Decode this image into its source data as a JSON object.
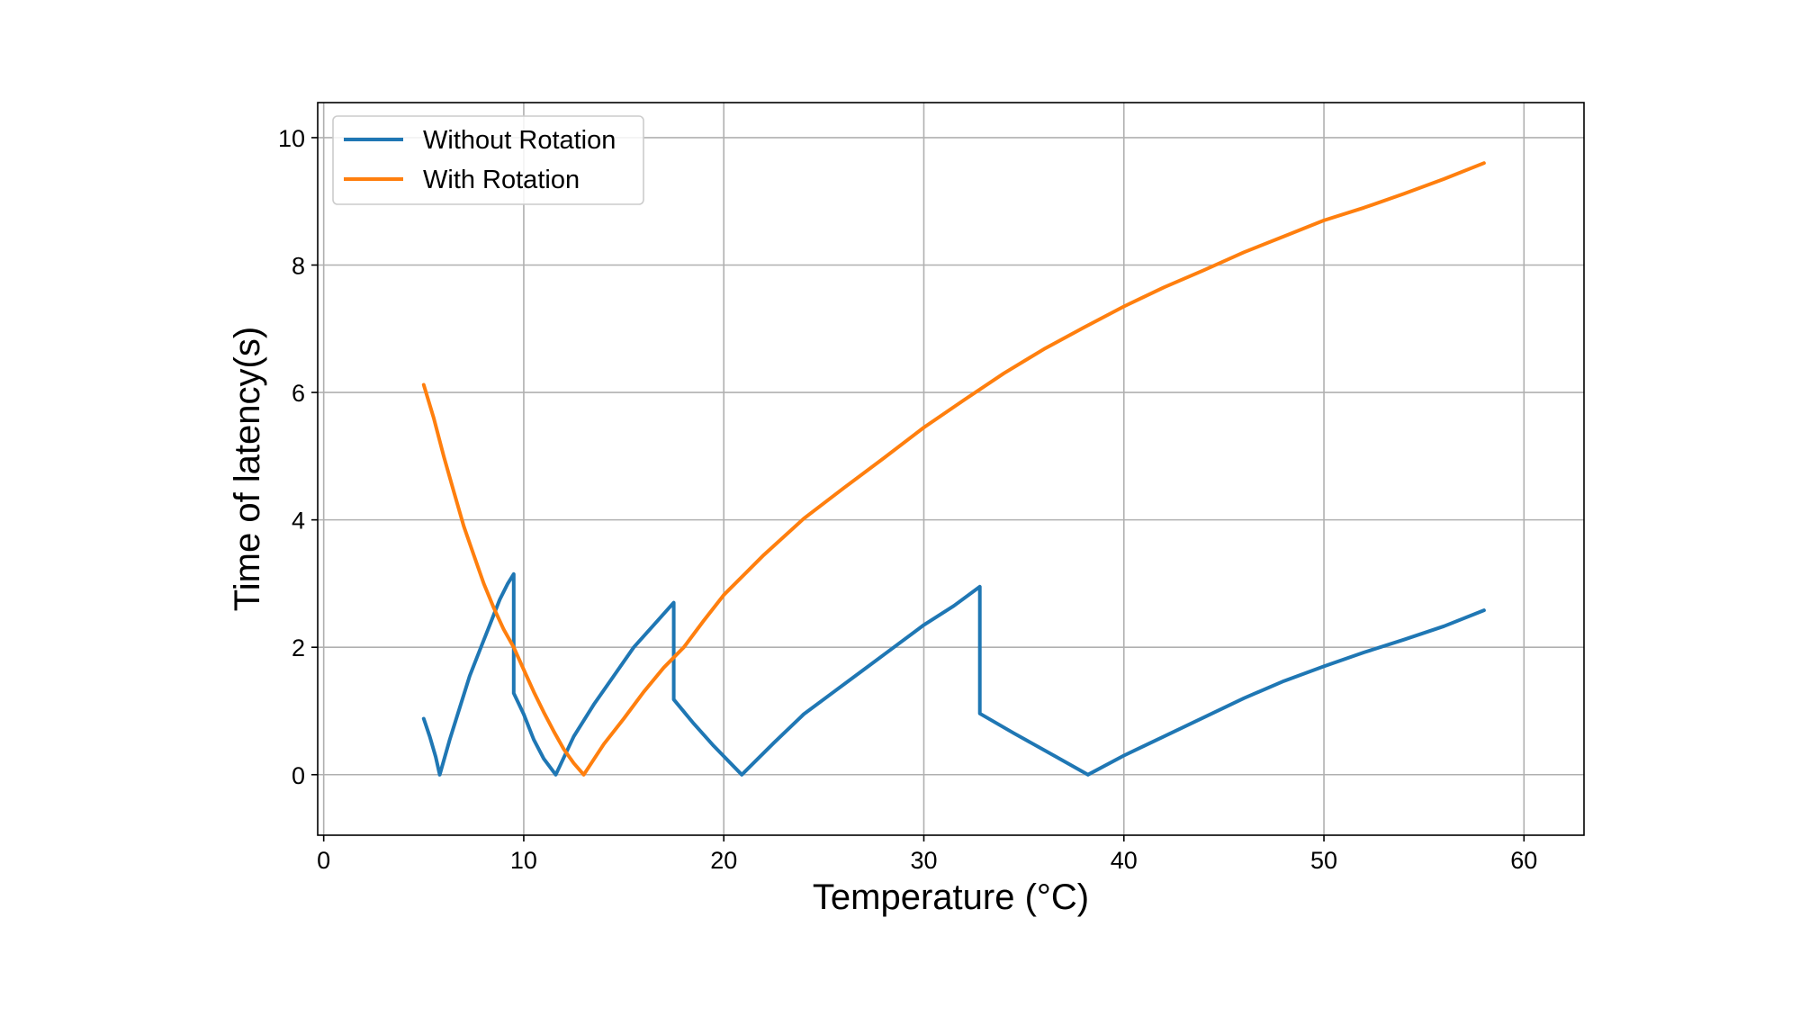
{
  "chart_data": {
    "type": "line",
    "title": "",
    "xlabel": "Temperature (°C)",
    "ylabel": "Time of latency(s)",
    "xlim": [
      -0.3,
      63
    ],
    "ylim": [
      -0.95,
      10.55
    ],
    "x_ticks": [
      0,
      10,
      20,
      30,
      40,
      50,
      60
    ],
    "y_ticks": [
      0,
      2,
      4,
      6,
      8,
      10
    ],
    "grid": true,
    "legend_placement": "top-left",
    "series": [
      {
        "name": "Without Rotation",
        "color": "#1f77b4",
        "points": [
          [
            5.0,
            0.88
          ],
          [
            5.3,
            0.6
          ],
          [
            5.6,
            0.28
          ],
          [
            5.8,
            0.0
          ],
          [
            6.3,
            0.55
          ],
          [
            6.8,
            1.05
          ],
          [
            7.3,
            1.55
          ],
          [
            7.8,
            1.95
          ],
          [
            8.3,
            2.35
          ],
          [
            8.8,
            2.75
          ],
          [
            9.2,
            3.0
          ],
          [
            9.5,
            3.15
          ],
          [
            9.5,
            1.28
          ],
          [
            10.0,
            0.95
          ],
          [
            10.5,
            0.55
          ],
          [
            11.0,
            0.25
          ],
          [
            11.6,
            0.0
          ],
          [
            12.5,
            0.6
          ],
          [
            13.5,
            1.1
          ],
          [
            14.5,
            1.55
          ],
          [
            15.5,
            2.0
          ],
          [
            16.5,
            2.35
          ],
          [
            17.5,
            2.7
          ],
          [
            17.5,
            1.18
          ],
          [
            18.5,
            0.8
          ],
          [
            19.5,
            0.45
          ],
          [
            20.9,
            0.0
          ],
          [
            22.5,
            0.5
          ],
          [
            24.0,
            0.95
          ],
          [
            25.5,
            1.3
          ],
          [
            27.0,
            1.65
          ],
          [
            28.5,
            2.0
          ],
          [
            30.0,
            2.35
          ],
          [
            31.5,
            2.65
          ],
          [
            32.8,
            2.95
          ],
          [
            32.8,
            0.96
          ],
          [
            34.5,
            0.65
          ],
          [
            36.5,
            0.3
          ],
          [
            38.2,
            0.0
          ],
          [
            40.0,
            0.3
          ],
          [
            42.0,
            0.6
          ],
          [
            44.0,
            0.9
          ],
          [
            46.0,
            1.2
          ],
          [
            48.0,
            1.47
          ],
          [
            50.0,
            1.7
          ],
          [
            52.0,
            1.92
          ],
          [
            54.0,
            2.12
          ],
          [
            56.0,
            2.33
          ],
          [
            58.0,
            2.58
          ]
        ]
      },
      {
        "name": "With Rotation",
        "color": "#ff7f0e",
        "points": [
          [
            5.0,
            6.12
          ],
          [
            5.5,
            5.6
          ],
          [
            6.0,
            5.0
          ],
          [
            6.5,
            4.45
          ],
          [
            7.0,
            3.9
          ],
          [
            7.5,
            3.45
          ],
          [
            8.0,
            3.0
          ],
          [
            8.5,
            2.62
          ],
          [
            9.0,
            2.28
          ],
          [
            9.5,
            2.0
          ],
          [
            10.0,
            1.65
          ],
          [
            10.5,
            1.3
          ],
          [
            11.0,
            0.98
          ],
          [
            11.5,
            0.68
          ],
          [
            12.0,
            0.4
          ],
          [
            12.5,
            0.18
          ],
          [
            13.0,
            0.0
          ],
          [
            14.0,
            0.48
          ],
          [
            15.0,
            0.88
          ],
          [
            16.0,
            1.3
          ],
          [
            17.0,
            1.68
          ],
          [
            18.0,
            2.0
          ],
          [
            19.0,
            2.42
          ],
          [
            20.0,
            2.82
          ],
          [
            22.0,
            3.45
          ],
          [
            24.0,
            4.02
          ],
          [
            26.0,
            4.5
          ],
          [
            28.0,
            4.97
          ],
          [
            30.0,
            5.45
          ],
          [
            32.0,
            5.88
          ],
          [
            34.0,
            6.3
          ],
          [
            36.0,
            6.68
          ],
          [
            38.0,
            7.02
          ],
          [
            40.0,
            7.35
          ],
          [
            42.0,
            7.65
          ],
          [
            44.0,
            7.92
          ],
          [
            46.0,
            8.2
          ],
          [
            48.0,
            8.45
          ],
          [
            50.0,
            8.7
          ],
          [
            52.0,
            8.9
          ],
          [
            54.0,
            9.12
          ],
          [
            56.0,
            9.35
          ],
          [
            58.0,
            9.6
          ]
        ]
      }
    ]
  }
}
